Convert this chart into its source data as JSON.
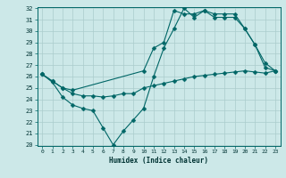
{
  "xlabel": "Humidex (Indice chaleur)",
  "bg_color": "#cce8e8",
  "grid_color": "#aacccc",
  "line_color": "#006666",
  "line1_x": [
    0,
    1,
    2,
    3,
    4,
    5,
    6,
    7,
    8,
    9,
    10,
    11,
    12,
    13,
    14,
    15,
    16,
    17,
    18,
    19,
    20,
    21,
    22,
    23
  ],
  "line1_y": [
    26.2,
    25.6,
    25.0,
    24.5,
    24.3,
    24.3,
    24.2,
    24.3,
    24.5,
    24.5,
    25.0,
    25.2,
    25.4,
    25.6,
    25.8,
    26.0,
    26.1,
    26.2,
    26.3,
    26.4,
    26.5,
    26.4,
    26.3,
    26.5
  ],
  "line2_x": [
    0,
    1,
    2,
    3,
    4,
    5,
    6,
    7,
    8,
    9,
    10,
    11,
    12,
    13,
    14,
    15,
    16,
    17,
    18,
    19,
    20,
    21,
    22,
    23
  ],
  "line2_y": [
    26.2,
    25.5,
    24.2,
    23.5,
    23.2,
    23.0,
    21.5,
    20.0,
    21.2,
    22.2,
    23.2,
    26.0,
    28.5,
    30.2,
    32.0,
    31.2,
    31.8,
    31.2,
    31.2,
    31.2,
    30.2,
    28.8,
    27.2,
    26.5
  ],
  "line3_x": [
    0,
    1,
    2,
    3,
    10,
    11,
    12,
    13,
    14,
    15,
    16,
    17,
    18,
    19,
    20,
    21,
    22,
    23
  ],
  "line3_y": [
    26.2,
    25.6,
    25.0,
    24.8,
    26.5,
    28.5,
    29.0,
    31.8,
    31.5,
    31.5,
    31.8,
    31.5,
    31.5,
    31.5,
    30.2,
    28.8,
    26.8,
    26.5
  ],
  "xmin": -0.5,
  "xmax": 23.5,
  "ymin": 20,
  "ymax": 32,
  "yticks": [
    20,
    21,
    22,
    23,
    24,
    25,
    26,
    27,
    28,
    29,
    30,
    31,
    32
  ],
  "xticks": [
    0,
    1,
    2,
    3,
    4,
    5,
    6,
    7,
    8,
    9,
    10,
    11,
    12,
    13,
    14,
    15,
    16,
    17,
    18,
    19,
    20,
    21,
    22,
    23
  ]
}
